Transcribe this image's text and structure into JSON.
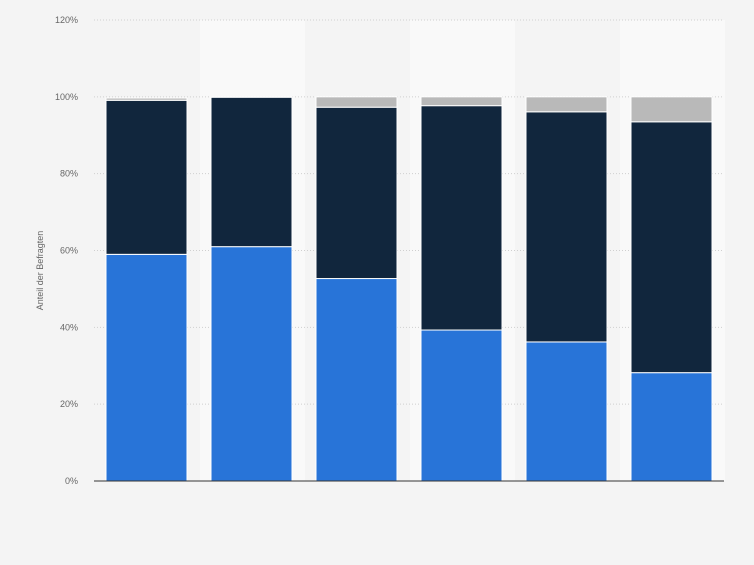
{
  "chart_data": {
    "type": "bar",
    "stacked": true,
    "title": "",
    "xlabel": "",
    "ylabel": "Anteil der Befragten",
    "ylim": [
      0,
      120
    ],
    "yticks": [
      0,
      20,
      40,
      60,
      80,
      100,
      120
    ],
    "ytick_labels": [
      "0%",
      "20%",
      "40%",
      "60%",
      "80%",
      "100%",
      "120%"
    ],
    "grid": true,
    "categories": [
      "",
      "",
      "",
      "",
      "",
      ""
    ],
    "series": [
      {
        "color": "#2874d8",
        "values": [
          59,
          61,
          52.7,
          39.3,
          36.2,
          28.2
        ]
      },
      {
        "color": "#11263d",
        "values": [
          40.1,
          38.9,
          44.6,
          58.4,
          59.9,
          65.3
        ]
      },
      {
        "color": "#b9b9b9",
        "values": [
          0.6,
          0.1,
          2.7,
          2.3,
          3.9,
          6.5
        ]
      }
    ]
  }
}
